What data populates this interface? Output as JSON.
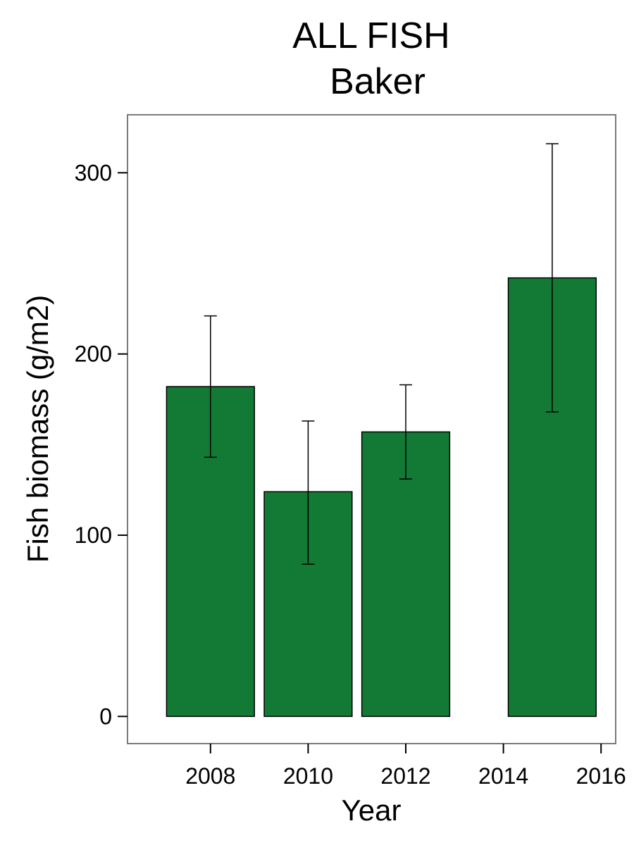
{
  "chart_data": {
    "type": "bar",
    "title": "ALL FISH",
    "subtitle": "Baker",
    "xlabel": "Year",
    "ylabel": "Fish biomass (g/m2)",
    "x": [
      2008,
      2010,
      2012,
      2015
    ],
    "values": [
      182,
      124,
      157,
      242
    ],
    "error_low": [
      143,
      84,
      131,
      168
    ],
    "error_high": [
      221,
      163,
      183,
      316
    ],
    "bar_width_years": 1.8,
    "xlim": [
      2006.3,
      2016.3
    ],
    "ylim": [
      -15,
      332
    ],
    "xticks": [
      2008,
      2010,
      2012,
      2014,
      2016
    ],
    "yticks": [
      0,
      100,
      200,
      300
    ],
    "bar_color": "#137a35",
    "grid": false
  }
}
